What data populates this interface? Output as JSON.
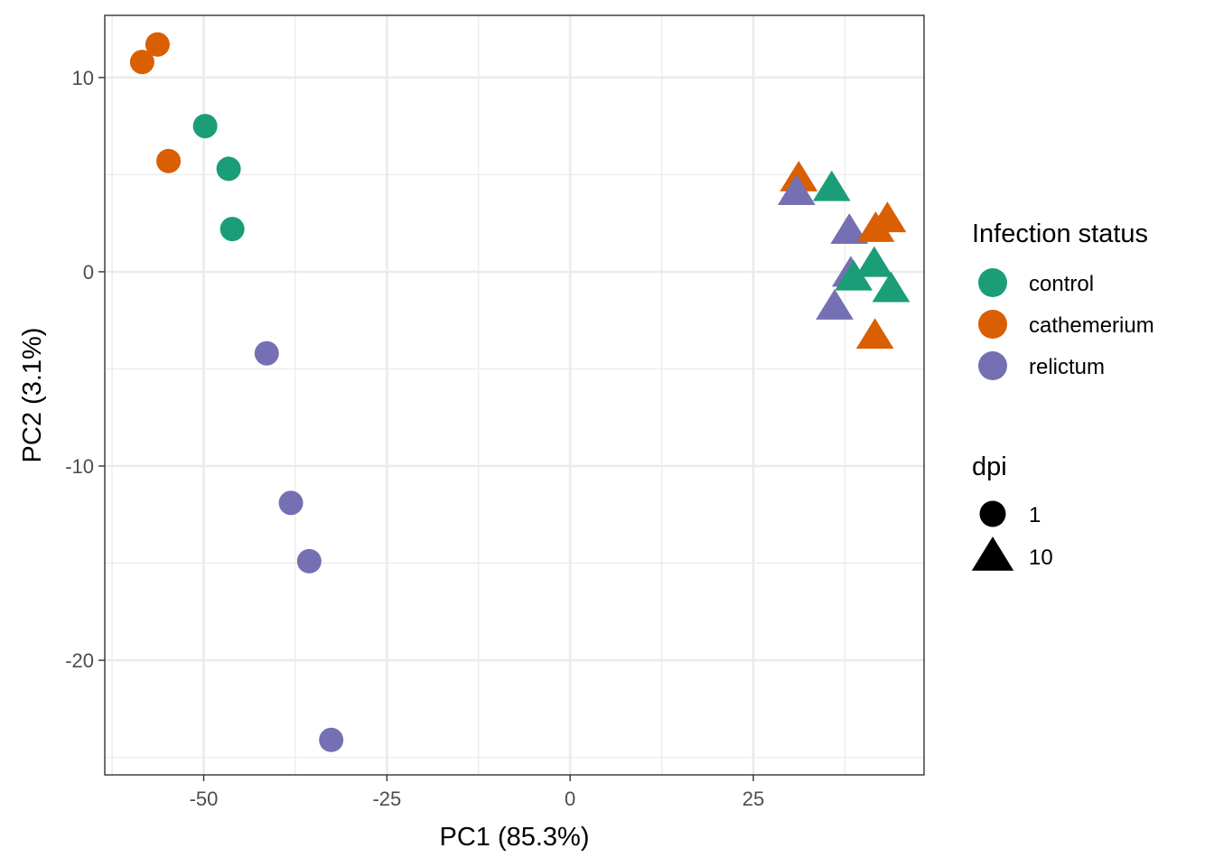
{
  "chart_data": {
    "type": "scatter",
    "title": "",
    "xlabel": "PC1 (85.3%)",
    "ylabel": "PC2 (3.1%)",
    "xlim": [
      -63.5,
      48.3
    ],
    "ylim": [
      -25.9,
      13.2
    ],
    "x_ticks": [
      -50,
      -25,
      0,
      25
    ],
    "y_ticks": [
      10,
      0,
      -10,
      -20
    ],
    "x_tick_labels": [
      "-50",
      "-25",
      "0",
      "25"
    ],
    "y_tick_labels": [
      "10",
      "0",
      "-10",
      "-20"
    ],
    "grid": true,
    "legend_position": "right",
    "legends": [
      {
        "title": "Infection status",
        "type": "color",
        "entries": [
          {
            "label": "control",
            "color": "#1B9E77"
          },
          {
            "label": "cathemerium",
            "color": "#D95F02"
          },
          {
            "label": "relictum",
            "color": "#7570B3"
          }
        ]
      },
      {
        "title": "dpi",
        "type": "shape",
        "entries": [
          {
            "label": "1",
            "shape": "circle"
          },
          {
            "label": "10",
            "shape": "triangle"
          }
        ]
      }
    ],
    "colors": {
      "control": "#1B9E77",
      "cathemerium": "#D95F02",
      "relictum": "#7570B3"
    },
    "points": [
      {
        "x": -58.4,
        "y": 10.8,
        "group": "cathemerium",
        "dpi": "1"
      },
      {
        "x": -56.3,
        "y": 11.7,
        "group": "cathemerium",
        "dpi": "1"
      },
      {
        "x": -54.8,
        "y": 5.7,
        "group": "cathemerium",
        "dpi": "1"
      },
      {
        "x": -49.8,
        "y": 7.5,
        "group": "control",
        "dpi": "1"
      },
      {
        "x": -46.6,
        "y": 5.3,
        "group": "control",
        "dpi": "1"
      },
      {
        "x": -46.1,
        "y": 2.2,
        "group": "control",
        "dpi": "1"
      },
      {
        "x": -41.4,
        "y": -4.2,
        "group": "relictum",
        "dpi": "1"
      },
      {
        "x": -38.1,
        "y": -11.9,
        "group": "relictum",
        "dpi": "1"
      },
      {
        "x": -35.6,
        "y": -14.9,
        "group": "relictum",
        "dpi": "1"
      },
      {
        "x": -32.6,
        "y": -24.1,
        "group": "relictum",
        "dpi": "1"
      },
      {
        "x": 31.2,
        "y": 4.8,
        "group": "cathemerium",
        "dpi": "10"
      },
      {
        "x": 30.9,
        "y": 4.1,
        "group": "relictum",
        "dpi": "10"
      },
      {
        "x": 35.7,
        "y": 4.3,
        "group": "control",
        "dpi": "10"
      },
      {
        "x": 38.1,
        "y": 2.1,
        "group": "relictum",
        "dpi": "10"
      },
      {
        "x": 41.7,
        "y": 2.2,
        "group": "cathemerium",
        "dpi": "10"
      },
      {
        "x": 43.3,
        "y": 2.7,
        "group": "cathemerium",
        "dpi": "10"
      },
      {
        "x": 38.3,
        "y": -0.1,
        "group": "relictum",
        "dpi": "10"
      },
      {
        "x": 41.5,
        "y": 0.4,
        "group": "control",
        "dpi": "10"
      },
      {
        "x": 38.7,
        "y": -0.3,
        "group": "control",
        "dpi": "10"
      },
      {
        "x": 43.8,
        "y": -0.9,
        "group": "control",
        "dpi": "10"
      },
      {
        "x": 36.1,
        "y": -1.8,
        "group": "relictum",
        "dpi": "10"
      },
      {
        "x": 41.6,
        "y": -3.3,
        "group": "cathemerium",
        "dpi": "10"
      }
    ]
  }
}
